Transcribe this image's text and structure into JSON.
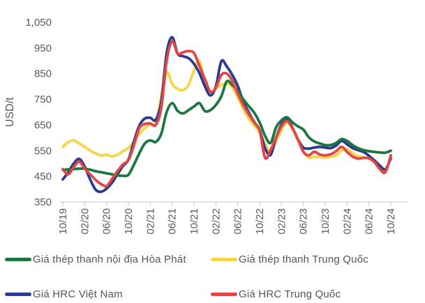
{
  "y_axis": {
    "title": "USD/t",
    "ticks": [
      "1,050",
      "950",
      "850",
      "750",
      "650",
      "550",
      "450",
      "350"
    ],
    "min": 350,
    "max": 1050,
    "step": 100
  },
  "chart_data": {
    "type": "line",
    "title": "",
    "xlabel": "",
    "ylabel": "USD/t",
    "ylim": [
      350,
      1050
    ],
    "grid": false,
    "legend_position": "bottom",
    "x_ticks": [
      "10/19",
      "02/20",
      "06/20",
      "10/20",
      "02/21",
      "06/21",
      "10/21",
      "02/22",
      "06/22",
      "10/22",
      "02/23",
      "06/23",
      "10/23",
      "02/24",
      "06/24",
      "10/24"
    ],
    "x": [
      "10/19",
      "11/19",
      "12/19",
      "01/20",
      "02/20",
      "03/20",
      "04/20",
      "05/20",
      "06/20",
      "07/20",
      "08/20",
      "09/20",
      "10/20",
      "11/20",
      "12/20",
      "01/21",
      "02/21",
      "03/21",
      "04/21",
      "05/21",
      "06/21",
      "07/21",
      "08/21",
      "09/21",
      "10/21",
      "11/21",
      "12/21",
      "01/22",
      "02/22",
      "03/22",
      "04/22",
      "05/22",
      "06/22",
      "07/22",
      "08/22",
      "09/22",
      "10/22",
      "11/22",
      "12/22",
      "01/23",
      "02/23",
      "03/23",
      "04/23",
      "05/23",
      "06/23",
      "07/23",
      "08/23",
      "09/23",
      "10/23",
      "11/23",
      "12/23",
      "01/24",
      "02/24",
      "03/24",
      "04/24",
      "05/24",
      "06/24",
      "07/24",
      "08/24",
      "09/24",
      "10/24"
    ],
    "series": [
      {
        "name": "Giá thép thanh nội địa Hòa Phát",
        "color": "#1b7740",
        "values": [
          475,
          477,
          478,
          480,
          480,
          476,
          470,
          466,
          462,
          458,
          454,
          452,
          456,
          495,
          540,
          578,
          590,
          584,
          615,
          700,
          735,
          705,
          695,
          708,
          722,
          735,
          704,
          708,
          728,
          762,
          820,
          806,
          782,
          750,
          724,
          698,
          660,
          608,
          580,
          640,
          668,
          680,
          660,
          645,
          632,
          602,
          586,
          578,
          572,
          572,
          580,
          595,
          588,
          572,
          560,
          552,
          548,
          545,
          543,
          542,
          550
        ]
      },
      {
        "name": "Giá thép thanh Trung Quốc",
        "color": "#f6d44b",
        "values": [
          565,
          583,
          590,
          578,
          565,
          550,
          540,
          531,
          534,
          528,
          534,
          548,
          560,
          586,
          615,
          638,
          652,
          660,
          760,
          855,
          810,
          790,
          786,
          806,
          862,
          900,
          812,
          775,
          790,
          806,
          812,
          796,
          757,
          712,
          676,
          648,
          621,
          578,
          545,
          585,
          630,
          660,
          636,
          590,
          548,
          522,
          526,
          526,
          522,
          526,
          532,
          550,
          556,
          540,
          528,
          524,
          520,
          506,
          482,
          470,
          528
        ]
      },
      {
        "name": "Giá HRC Việt Nam",
        "color": "#2b3b8f",
        "values": [
          438,
          466,
          500,
          518,
          488,
          438,
          398,
          390,
          402,
          425,
          458,
          490,
          515,
          585,
          648,
          675,
          678,
          670,
          740,
          930,
          992,
          928,
          918,
          910,
          888,
          852,
          800,
          765,
          800,
          898,
          878,
          845,
          802,
          742,
          700,
          662,
          630,
          560,
          533,
          600,
          652,
          675,
          640,
          595,
          562,
          558,
          562,
          565,
          562,
          560,
          570,
          588,
          575,
          560,
          552,
          545,
          530,
          512,
          492,
          477,
          520
        ]
      },
      {
        "name": "Giá HRC Trung Quốc",
        "color": "#e24747",
        "values": [
          478,
          458,
          486,
          507,
          480,
          458,
          436,
          420,
          412,
          440,
          470,
          497,
          513,
          570,
          638,
          654,
          656,
          650,
          715,
          900,
          975,
          928,
          933,
          938,
          930,
          880,
          828,
          780,
          795,
          845,
          850,
          822,
          772,
          728,
          692,
          660,
          628,
          522,
          552,
          600,
          645,
          665,
          638,
          595,
          545,
          532,
          546,
          535,
          532,
          536,
          548,
          565,
          545,
          527,
          519,
          522,
          520,
          505,
          478,
          466,
          532
        ]
      }
    ]
  },
  "legend": {
    "row1_left": "Giá thép thanh nội địa Hòa Phát",
    "row1_right": "Giá thép thanh Trung Quốc",
    "row2_left": "Giá HRC Việt Nam",
    "row2_right": "Giá HRC Trung Quốc"
  }
}
